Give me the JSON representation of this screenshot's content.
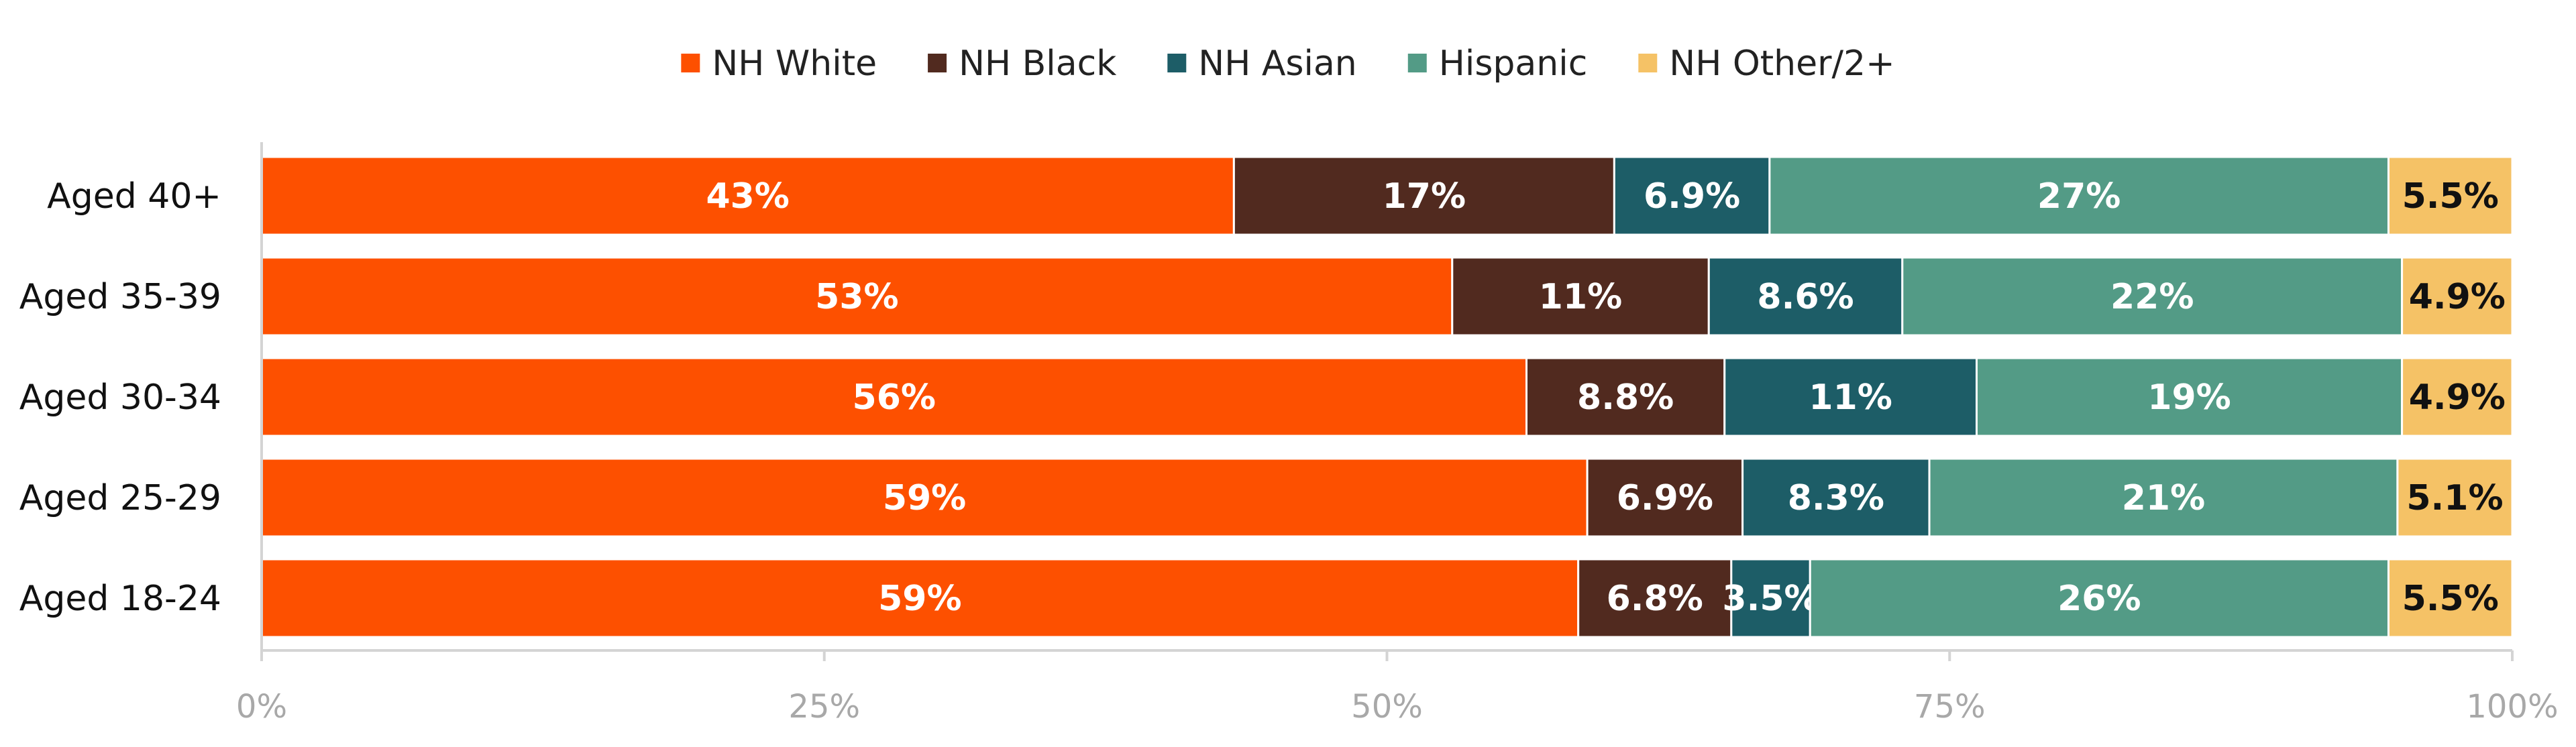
{
  "chart_data": {
    "type": "bar",
    "orientation": "horizontal",
    "stacked": true,
    "categories": [
      "Aged 40+",
      "Aged 35-39",
      "Aged 30-34",
      "Aged 25-29",
      "Aged 18-24"
    ],
    "series": [
      {
        "name": "NH White",
        "color": "#fd5000",
        "values": [
          43.2,
          52.9,
          56.2,
          58.9,
          58.5
        ],
        "labels": [
          "43%",
          "53%",
          "56%",
          "59%",
          "59%"
        ]
      },
      {
        "name": "NH Black",
        "color": "#512a1f",
        "values": [
          16.9,
          11.4,
          8.8,
          6.9,
          6.8
        ],
        "labels": [
          "17%",
          "11%",
          "8.8%",
          "6.9%",
          "6.8%"
        ]
      },
      {
        "name": "NH Asian",
        "color": "#1d5d67",
        "values": [
          6.9,
          8.6,
          11.2,
          8.3,
          3.5
        ],
        "labels": [
          "6.9%",
          "8.6%",
          "11%",
          "8.3%",
          "3.5%"
        ]
      },
      {
        "name": "Hispanic",
        "color": "#539b86",
        "values": [
          27.5,
          22.2,
          18.9,
          20.8,
          25.7
        ],
        "labels": [
          "27%",
          "22%",
          "19%",
          "21%",
          "26%"
        ]
      },
      {
        "name": "NH Other/2+",
        "color": "#f5c266",
        "values": [
          5.5,
          4.9,
          4.9,
          5.1,
          5.5
        ],
        "labels": [
          "5.5%",
          "4.9%",
          "4.9%",
          "5.1%",
          "5.5%"
        ]
      }
    ],
    "x_ticks": [
      "0%",
      "25%",
      "50%",
      "75%",
      "100%"
    ],
    "xlim": [
      0,
      100
    ],
    "title": "",
    "xlabel": "",
    "ylabel": "",
    "legend_position": "top",
    "grid": false
  }
}
